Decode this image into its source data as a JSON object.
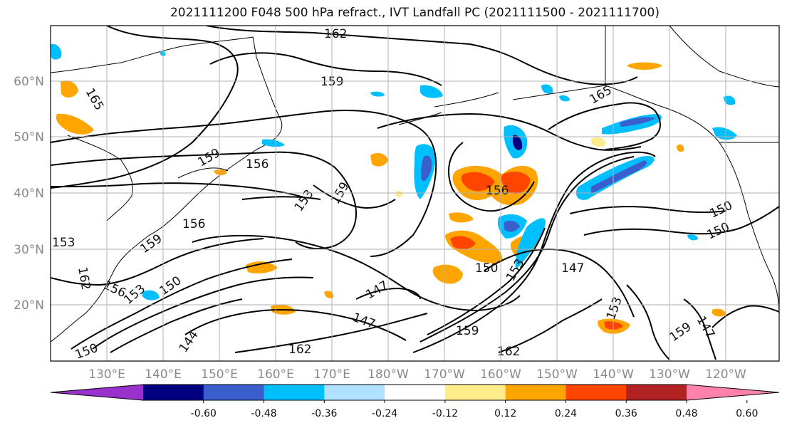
{
  "title": "2021111200 F048 500 hPa refract., IVT Landfall PC (2021111500 - 2021111700)",
  "lat_labels": [
    "60°N",
    "50°N",
    "40°N",
    "30°N",
    "20°N"
  ],
  "lon_labels": [
    "130°E",
    "140°E",
    "150°E",
    "160°E",
    "170°E",
    "180°W",
    "170°W",
    "160°W",
    "150°W",
    "140°W",
    "130°W",
    "120°W"
  ],
  "colorbar": {
    "colors": [
      "#9932cc",
      "#000080",
      "#3a5fcd",
      "#00bfff",
      "#b0e2ff",
      "#ffffff",
      "#ffec8b",
      "#ffa500",
      "#ff4500",
      "#b22222",
      "#ff82ab"
    ],
    "tick_labels": [
      "-0.60",
      "-0.48",
      "-0.36",
      "-0.24",
      "-0.12",
      "0.12",
      "0.24",
      "0.36",
      "0.48",
      "0.60"
    ]
  },
  "contour_labels": [
    "162",
    "159",
    "165",
    "165",
    "156",
    "159",
    "153",
    "159",
    "156",
    "156",
    "153",
    "150",
    "150",
    "159",
    "156",
    "162",
    "150",
    "147",
    "147",
    "147",
    "144",
    "162",
    "162",
    "159",
    "153",
    "153",
    "150",
    "147",
    "153",
    "159",
    "150"
  ]
}
